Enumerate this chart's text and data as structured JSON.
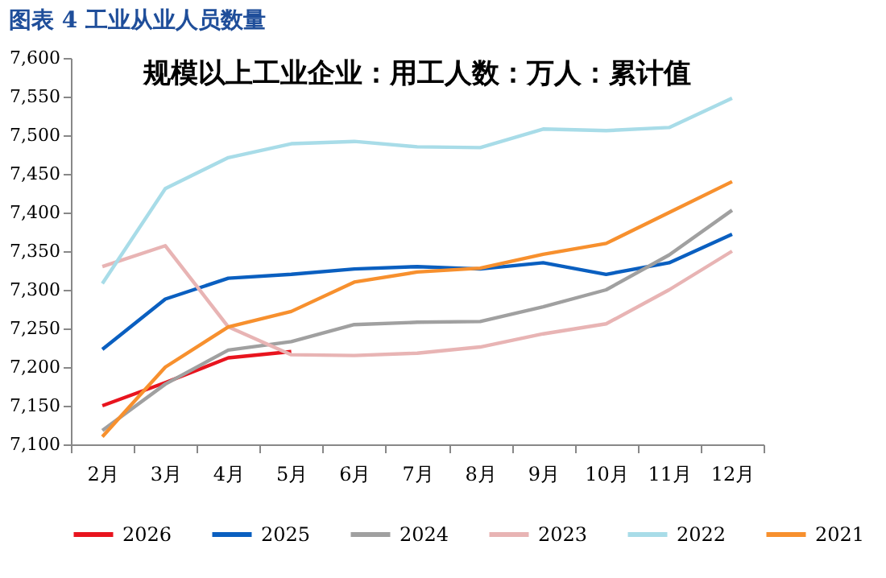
{
  "chart_data": {
    "type": "line",
    "title": "图表 4 工业从业人员数量",
    "subtitle": "规模以上工业企业：用工人数：万人：累计值",
    "categories": [
      "2月",
      "3月",
      "4月",
      "5月",
      "6月",
      "7月",
      "8月",
      "9月",
      "10月",
      "11月",
      "12月"
    ],
    "ylim": [
      7100,
      7600
    ],
    "yticks": [
      {
        "value": 7100,
        "label": "7,100"
      },
      {
        "value": 7150,
        "label": "7,150"
      },
      {
        "value": 7200,
        "label": "7,200"
      },
      {
        "value": 7250,
        "label": "7,250"
      },
      {
        "value": 7300,
        "label": "7,300"
      },
      {
        "value": 7350,
        "label": "7,350"
      },
      {
        "value": 7400,
        "label": "7,400"
      },
      {
        "value": 7450,
        "label": "7,450"
      },
      {
        "value": 7500,
        "label": "7,500"
      },
      {
        "value": 7550,
        "label": "7,550"
      },
      {
        "value": 7600,
        "label": "7,600"
      }
    ],
    "grid": false,
    "legend": "bottom",
    "marker": "none",
    "line_style": "solid",
    "series": [
      {
        "name": "2026",
        "color": "#e8141e",
        "values": [
          7150,
          7180,
          7212,
          7220,
          null,
          null,
          null,
          null,
          null,
          null,
          null
        ]
      },
      {
        "name": "2025",
        "color": "#0a5fc0",
        "values": [
          7223,
          7288,
          7315,
          7320,
          7327,
          7330,
          7327,
          7335,
          7320,
          7335,
          7372
        ]
      },
      {
        "name": "2024",
        "color": "#a0a0a0",
        "values": [
          7118,
          7178,
          7222,
          7233,
          7255,
          7258,
          7259,
          7278,
          7300,
          7345,
          7403
        ]
      },
      {
        "name": "2023",
        "color": "#e8b4b4",
        "values": [
          7330,
          7357,
          7252,
          7216,
          7215,
          7218,
          7226,
          7243,
          7256,
          7300,
          7350
        ]
      },
      {
        "name": "2022",
        "color": "#a8dce8",
        "values": [
          7308,
          7431,
          7471,
          7489,
          7492,
          7485,
          7484,
          7508,
          7506,
          7510,
          7548
        ]
      },
      {
        "name": "2021",
        "color": "#f7902e",
        "values": [
          7110,
          7200,
          7252,
          7272,
          7310,
          7323,
          7328,
          7346,
          7360,
          7400,
          7440
        ]
      }
    ]
  }
}
